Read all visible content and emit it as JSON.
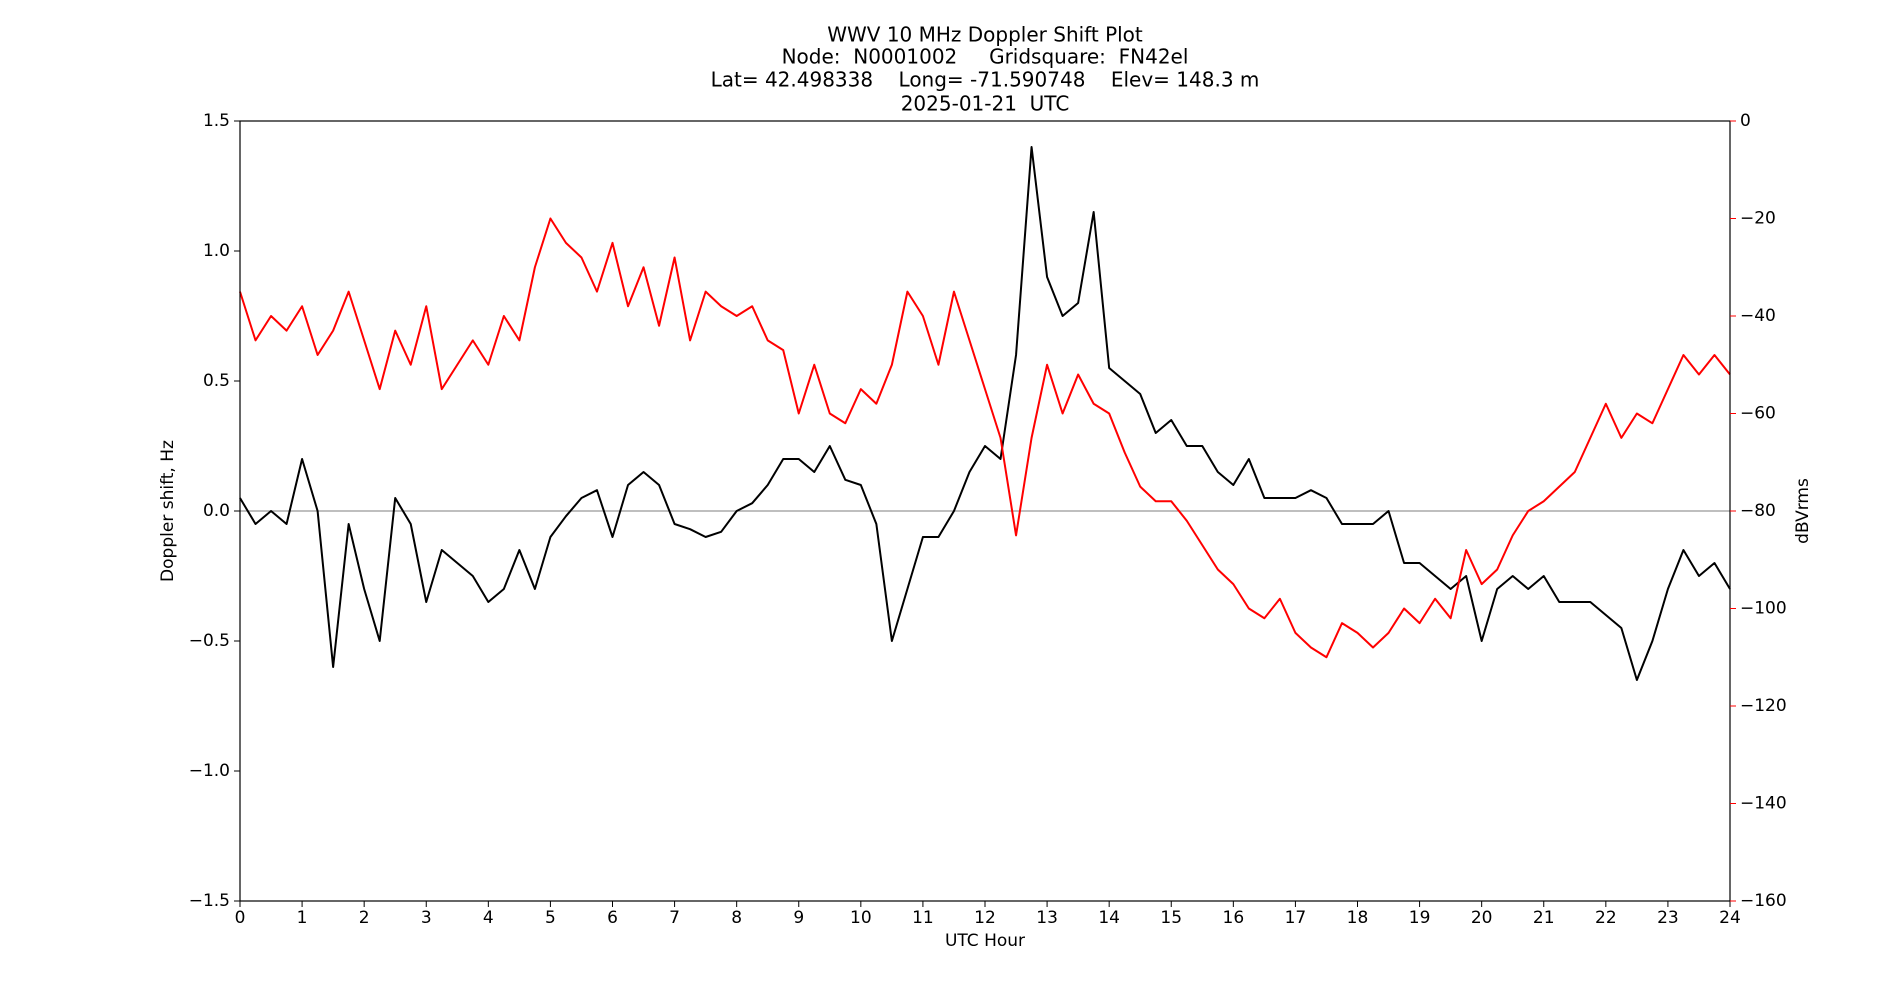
{
  "chart_data": {
    "type": "line",
    "title_lines": [
      "WWV 10 MHz Doppler Shift Plot",
      "Node:  N0001002     Gridsquare:  FN42el",
      "Lat= 42.498338    Long= -71.590748    Elev= 148.3 m",
      "2025-01-21  UTC"
    ],
    "xlabel": "UTC Hour",
    "ylabel": "Doppler shift, Hz",
    "y2label": "dBVrms",
    "y2color": "#ff0000",
    "xlim": [
      0,
      24
    ],
    "xticks": [
      0,
      1,
      2,
      3,
      4,
      5,
      6,
      7,
      8,
      9,
      10,
      11,
      12,
      13,
      14,
      15,
      16,
      17,
      18,
      19,
      20,
      21,
      22,
      23,
      24
    ],
    "ylim": [
      -1.5,
      1.5
    ],
    "yticks": [
      {
        "value": -1.5,
        "label": "−1.5"
      },
      {
        "value": -1,
        "label": "−1.0"
      },
      {
        "value": -0.5,
        "label": "−0.5"
      },
      {
        "value": 0,
        "label": "0.0"
      },
      {
        "value": 0.5,
        "label": "0.5"
      },
      {
        "value": 1,
        "label": "1.0"
      },
      {
        "value": 1.5,
        "label": "1.5"
      }
    ],
    "y2lim": [
      -160,
      0
    ],
    "y2ticks": [
      {
        "value": -160,
        "label": "−160"
      },
      {
        "value": -140,
        "label": "−140"
      },
      {
        "value": -120,
        "label": "−120"
      },
      {
        "value": -100,
        "label": "−100"
      },
      {
        "value": -80,
        "label": "−80"
      },
      {
        "value": -60,
        "label": "−60"
      },
      {
        "value": -40,
        "label": "−40"
      },
      {
        "value": -20,
        "label": "−20"
      },
      0
    ],
    "axhline": 0,
    "x": [
      0,
      0.25,
      0.5,
      0.75,
      1,
      1.25,
      1.5,
      1.75,
      2,
      2.25,
      2.5,
      2.75,
      3,
      3.25,
      3.5,
      3.75,
      4,
      4.25,
      4.5,
      4.75,
      5,
      5.25,
      5.5,
      5.75,
      6,
      6.25,
      6.5,
      6.75,
      7,
      7.25,
      7.5,
      7.75,
      8,
      8.25,
      8.5,
      8.75,
      9,
      9.25,
      9.5,
      9.75,
      10,
      10.25,
      10.5,
      10.75,
      11,
      11.25,
      11.5,
      11.75,
      12,
      12.25,
      12.5,
      12.75,
      13,
      13.25,
      13.5,
      13.75,
      14,
      14.25,
      14.5,
      14.75,
      15,
      15.25,
      15.5,
      15.75,
      16,
      16.25,
      16.5,
      16.75,
      17,
      17.25,
      17.5,
      17.75,
      18,
      18.25,
      18.5,
      18.75,
      19,
      19.25,
      19.5,
      19.75,
      20,
      20.25,
      20.5,
      20.75,
      21,
      21.25,
      21.5,
      21.75,
      22,
      22.25,
      22.5,
      22.75,
      23,
      23.25,
      23.5,
      23.75,
      24
    ],
    "series": [
      {
        "color": "#000000",
        "axis": "y",
        "values": [
          0.05,
          -0.05,
          0.0,
          -0.05,
          0.2,
          0.0,
          -0.6,
          -0.05,
          -0.3,
          -0.5,
          0.05,
          -0.05,
          -0.35,
          -0.15,
          -0.2,
          -0.25,
          -0.35,
          -0.3,
          -0.15,
          -0.3,
          -0.1,
          -0.02,
          0.05,
          0.08,
          -0.1,
          0.1,
          0.15,
          0.1,
          -0.05,
          -0.07,
          -0.1,
          -0.08,
          0.0,
          0.03,
          0.1,
          0.2,
          0.2,
          0.15,
          0.25,
          0.12,
          0.1,
          -0.05,
          -0.5,
          -0.3,
          -0.1,
          -0.1,
          0.0,
          0.15,
          0.25,
          0.2,
          0.6,
          1.4,
          0.9,
          0.75,
          0.8,
          1.15,
          0.55,
          0.5,
          0.45,
          0.3,
          0.35,
          0.25,
          0.25,
          0.15,
          0.1,
          0.2,
          0.05,
          0.05,
          0.05,
          0.08,
          0.05,
          -0.05,
          -0.05,
          -0.05,
          0.0,
          -0.2,
          -0.2,
          -0.25,
          -0.3,
          -0.25,
          -0.5,
          -0.3,
          -0.25,
          -0.3,
          -0.25,
          -0.35,
          -0.35,
          -0.35,
          -0.4,
          -0.45,
          -0.65,
          -0.5,
          -0.3,
          -0.15,
          -0.25,
          -0.2,
          -0.3
        ]
      },
      {
        "color": "#ff0000",
        "axis": "y2",
        "values": [
          -35,
          -45,
          -40,
          -43,
          -38,
          -48,
          -43,
          -35,
          -45,
          -55,
          -43,
          -50,
          -38,
          -55,
          -50,
          -45,
          -50,
          -40,
          -45,
          -30,
          -20,
          -25,
          -28,
          -35,
          -25,
          -38,
          -30,
          -42,
          -28,
          -45,
          -35,
          -38,
          -40,
          -38,
          -45,
          -47,
          -60,
          -50,
          -60,
          -62,
          -55,
          -58,
          -50,
          -35,
          -40,
          -50,
          -35,
          -45,
          -55,
          -65,
          -85,
          -65,
          -50,
          -60,
          -52,
          -58,
          -60,
          -68,
          -75,
          -78,
          -78,
          -82,
          -87,
          -92,
          -95,
          -100,
          -102,
          -98,
          -105,
          -108,
          -110,
          -103,
          -105,
          -108,
          -105,
          -100,
          -103,
          -98,
          -102,
          -88,
          -95,
          -92,
          -85,
          -80,
          -78,
          -75,
          -72,
          -65,
          -58,
          -65,
          -60,
          -62,
          -55,
          -48,
          -52,
          -48,
          -52
        ]
      }
    ]
  }
}
